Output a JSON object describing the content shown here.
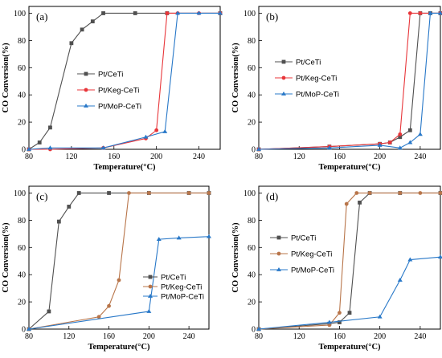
{
  "chart_data": [
    {
      "type": "line",
      "panel_label": "(a)",
      "xlabel": "Temperature(°C)",
      "ylabel": "CO Conversion(%)",
      "xlim": [
        80,
        260
      ],
      "ylim": [
        0,
        105
      ],
      "xticks": [
        80,
        120,
        160,
        200,
        240
      ],
      "yticks": [
        0,
        20,
        40,
        60,
        80,
        100
      ],
      "legend_position": "center-left",
      "series": [
        {
          "name": "Pt/CeTi",
          "color": "#505050",
          "marker": "square",
          "x": [
            80,
            90,
            100,
            120,
            130,
            140,
            150,
            180,
            210,
            260
          ],
          "y": [
            0,
            5,
            16,
            78,
            88,
            94,
            100,
            100,
            100,
            100
          ]
        },
        {
          "name": "Pt/Keg-CeTi",
          "color": "#e8363a",
          "marker": "circle",
          "x": [
            80,
            100,
            150,
            190,
            200,
            210,
            220,
            240,
            260
          ],
          "y": [
            0,
            0,
            1,
            8,
            14,
            100,
            100,
            100,
            100
          ]
        },
        {
          "name": "Pt/MoP-CeTi",
          "color": "#2878c8",
          "marker": "triangle",
          "x": [
            80,
            100,
            150,
            190,
            208,
            220,
            240,
            260
          ],
          "y": [
            0,
            1,
            1,
            9,
            13,
            100,
            100,
            100
          ]
        }
      ]
    },
    {
      "type": "line",
      "panel_label": "(b)",
      "xlabel": "Temperature(°C)",
      "ylabel": "CO Conversion(%)",
      "xlim": [
        80,
        260
      ],
      "ylim": [
        0,
        105
      ],
      "xticks": [
        80,
        120,
        160,
        200,
        240
      ],
      "yticks": [
        0,
        20,
        40,
        60,
        80,
        100
      ],
      "legend_position": "center-left",
      "series": [
        {
          "name": "Pt/CeTi",
          "color": "#505050",
          "marker": "square",
          "x": [
            80,
            150,
            200,
            210,
            220,
            230,
            240,
            250,
            260
          ],
          "y": [
            0,
            2,
            4,
            5,
            9,
            14,
            100,
            100,
            100
          ]
        },
        {
          "name": "Pt/Keg-CeTi",
          "color": "#e8363a",
          "marker": "circle",
          "x": [
            80,
            150,
            200,
            210,
            220,
            230,
            240,
            260
          ],
          "y": [
            0,
            2,
            4,
            5,
            11,
            100,
            100,
            100
          ]
        },
        {
          "name": "Pt/MoP-CeTi",
          "color": "#2878c8",
          "marker": "triangle",
          "x": [
            80,
            150,
            200,
            220,
            230,
            240,
            250,
            260
          ],
          "y": [
            0,
            1,
            3,
            1,
            5,
            11,
            100,
            100
          ]
        }
      ]
    },
    {
      "type": "line",
      "panel_label": "(c)",
      "xlabel": "Temperature(°C)",
      "ylabel": "CO Conversion(%)",
      "xlim": [
        80,
        260
      ],
      "ylim": [
        0,
        105
      ],
      "xticks": [
        80,
        120,
        160,
        200,
        240
      ],
      "yticks": [
        0,
        20,
        40,
        60,
        80,
        100
      ],
      "legend_position": "bottom-right",
      "series": [
        {
          "name": "Pt/CeTi",
          "color": "#505050",
          "marker": "square",
          "x": [
            80,
            100,
            110,
            120,
            130,
            160,
            200,
            240,
            260
          ],
          "y": [
            0,
            13,
            79,
            90,
            100,
            100,
            100,
            100,
            100
          ]
        },
        {
          "name": "Pt/Keg-CeTi",
          "color": "#b8754a",
          "marker": "circle",
          "x": [
            80,
            150,
            160,
            170,
            180,
            200,
            240,
            260
          ],
          "y": [
            0,
            9,
            17,
            36,
            100,
            100,
            100,
            100
          ]
        },
        {
          "name": "Pt/MoP-CeTi",
          "color": "#2878c8",
          "marker": "triangle",
          "x": [
            80,
            200,
            210,
            230,
            260
          ],
          "y": [
            0,
            13,
            66,
            67,
            68
          ]
        }
      ]
    },
    {
      "type": "line",
      "panel_label": "(d)",
      "xlabel": "Temperature(°C)",
      "ylabel": "CO Conversion(%)",
      "xlim": [
        80,
        260
      ],
      "ylim": [
        0,
        105
      ],
      "xticks": [
        80,
        120,
        160,
        200,
        240
      ],
      "yticks": [
        0,
        20,
        40,
        60,
        80,
        100
      ],
      "legend_position": "center-left",
      "series": [
        {
          "name": "Pt/CeTi",
          "color": "#505050",
          "marker": "square",
          "x": [
            80,
            150,
            160,
            170,
            180,
            190,
            220,
            260
          ],
          "y": [
            0,
            4,
            5,
            12,
            93,
            100,
            100,
            100
          ]
        },
        {
          "name": "Pt/Keg-CeTi",
          "color": "#b8754a",
          "marker": "circle",
          "x": [
            80,
            150,
            160,
            167,
            177,
            190,
            220,
            240,
            260
          ],
          "y": [
            0,
            3,
            12,
            92,
            100,
            100,
            100,
            100,
            100
          ]
        },
        {
          "name": "Pt/MoP-CeTi",
          "color": "#2878c8",
          "marker": "triangle",
          "x": [
            80,
            150,
            200,
            220,
            230,
            260
          ],
          "y": [
            0,
            5,
            9,
            36,
            51,
            53
          ]
        }
      ]
    }
  ]
}
